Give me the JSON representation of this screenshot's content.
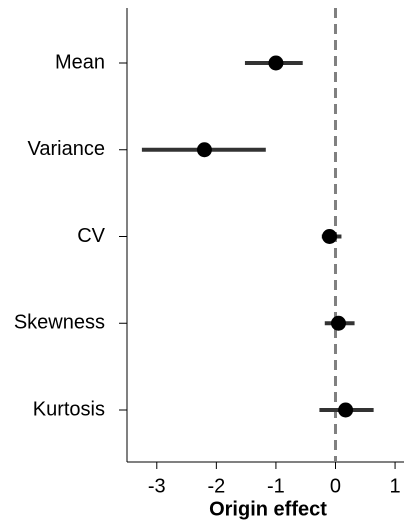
{
  "chart_data": {
    "type": "forest",
    "xlabel": "Origin effect",
    "categories": [
      "Mean",
      "Variance",
      "CV",
      "Skewness",
      "Kurtosis"
    ],
    "values": [
      -1.0,
      -2.2,
      -0.1,
      0.05,
      0.17
    ],
    "lower": [
      -1.52,
      -3.25,
      -0.23,
      -0.18,
      -0.27
    ],
    "upper": [
      -0.55,
      -1.17,
      0.1,
      0.32,
      0.64
    ],
    "color": "#000000",
    "bar_color": "#333333",
    "reference_line": 0,
    "reference_color": "#808080",
    "xlim": [
      -3.5,
      1.15
    ],
    "xticks": [
      -3,
      -2,
      -1,
      0,
      1
    ]
  }
}
